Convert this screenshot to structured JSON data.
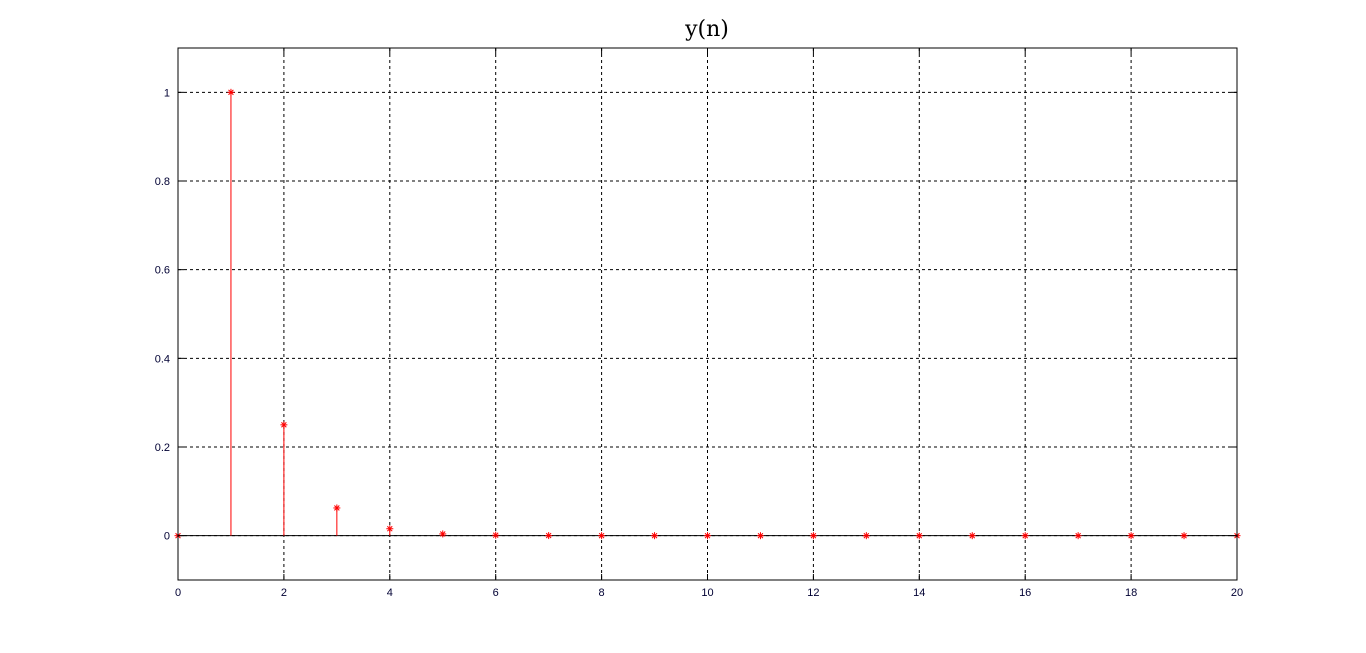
{
  "chart_data": {
    "type": "stem",
    "title": "y(n)",
    "xlabel": "",
    "ylabel": "",
    "xlim": [
      0,
      20
    ],
    "ylim": [
      -0.1,
      1.1
    ],
    "x_ticks": [
      0,
      2,
      4,
      6,
      8,
      10,
      12,
      14,
      16,
      18,
      20
    ],
    "y_ticks": [
      0,
      0.2,
      0.4,
      0.6,
      0.8,
      1
    ],
    "grid": true,
    "marker": "asterisk",
    "color": "#ff0000",
    "series": [
      {
        "x": [
          0,
          1,
          2,
          3,
          4,
          5,
          6,
          7,
          8,
          9,
          10,
          11,
          12,
          13,
          14,
          15,
          16,
          17,
          18,
          19,
          20
        ],
        "values": [
          0,
          1,
          0.25,
          0.0625,
          0.015625,
          0.00390625,
          0.0009765625,
          0.000244,
          6.1e-05,
          1.5e-05,
          3.8e-06,
          9.5e-07,
          2.4e-07,
          6e-08,
          1.5e-08,
          3.7e-09,
          9e-10,
          2e-10,
          6e-11,
          1e-11,
          4e-12
        ]
      }
    ]
  }
}
